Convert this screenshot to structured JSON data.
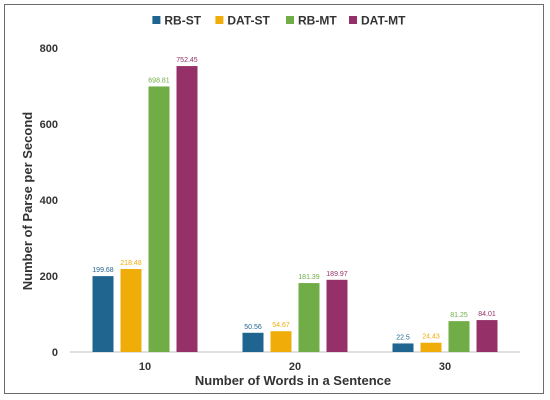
{
  "chart_data": {
    "type": "bar",
    "categories": [
      "10",
      "20",
      "30"
    ],
    "series": [
      {
        "name": "RB-ST",
        "color": "#1f6590",
        "values": [
          199.68,
          50.56,
          22.5
        ],
        "labels": [
          "199.68",
          "50.56",
          "22.5"
        ]
      },
      {
        "name": "DAT-ST",
        "color": "#f0ad0a",
        "values": [
          218.48,
          54.67,
          24.43
        ],
        "labels": [
          "218.48",
          "54.67",
          "24.43"
        ]
      },
      {
        "name": "RB-MT",
        "color": "#70ad47",
        "values": [
          698.81,
          181.39,
          81.25
        ],
        "labels": [
          "698.81",
          "181.39",
          "81.25"
        ]
      },
      {
        "name": "DAT-MT",
        "color": "#963068",
        "values": [
          752.45,
          189.97,
          84.01
        ],
        "labels": [
          "752.45",
          "189.97",
          "84.01"
        ]
      }
    ],
    "xlabel": "Number of Words in a Sentence",
    "ylabel": "Number of Parse per Second",
    "ylim": [
      0,
      800
    ],
    "yticks": [
      0,
      200,
      400,
      600,
      800
    ],
    "grid": false,
    "legend": "top-center"
  }
}
